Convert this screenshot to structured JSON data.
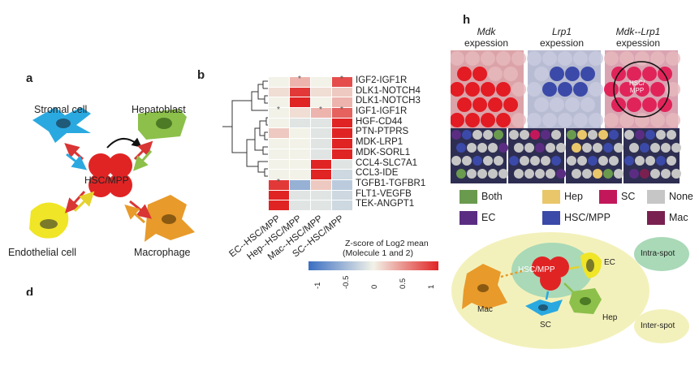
{
  "panels": {
    "a": {
      "label": "a",
      "center": "HSC/MPP",
      "cells": [
        "Stromal cell",
        "Hepatoblast",
        "Endothelial cell",
        "Macrophage"
      ]
    },
    "b": {
      "label": "b",
      "rows": [
        "IGF2-IGF1R",
        "DLK1-NOTCH4",
        "DLK1-NOTCH3",
        "IGF1-IGF1R",
        "HGF-CD44",
        "PTN-PTPRS",
        "MDK-LRP1",
        "MDK-SORL1",
        "CCL4-SLC7A1",
        "CCL3-IDE",
        "TGFB1-TGFBR1",
        "FLT1-VEGFB",
        "TEK-ANGPT1"
      ],
      "columns": [
        "EC--HSC/MPP",
        "Hep--HSC/MPP",
        "Mac--HSC/MPP",
        "SC--HSC/MPP"
      ],
      "z_values": [
        [
          0.0,
          0.3,
          0.0,
          0.8
        ],
        [
          0.1,
          0.9,
          0.1,
          0.2
        ],
        [
          0.0,
          1.0,
          0.0,
          0.3
        ],
        [
          0.0,
          0.1,
          0.3,
          0.7
        ],
        [
          0.0,
          -0.1,
          -0.1,
          2.0
        ],
        [
          0.2,
          0.0,
          -0.1,
          2.0
        ],
        [
          0.0,
          0.0,
          -0.1,
          2.0
        ],
        [
          0.0,
          0.0,
          -0.1,
          2.0
        ],
        [
          0.0,
          0.0,
          2.0,
          -0.1
        ],
        [
          0.0,
          0.0,
          2.0,
          -0.2
        ],
        [
          0.9,
          -0.5,
          0.2,
          -0.3
        ],
        [
          2.0,
          -0.1,
          -0.1,
          -0.2
        ],
        [
          2.0,
          -0.1,
          -0.1,
          -0.2
        ]
      ],
      "stars": [
        [
          0,
          1
        ],
        [
          0,
          3
        ],
        [
          3,
          0
        ],
        [
          3,
          2
        ],
        [
          3,
          3
        ],
        [
          10,
          0
        ]
      ],
      "star_symbol": "*",
      "colorbar": {
        "title_line1": "Z-score of Log2 mean",
        "title_line2": "(Molecule 1 and  2)",
        "ticks": [
          "-1",
          "-0.5",
          "0",
          "0.5",
          "1"
        ],
        "low_color": "#3b6fc2",
        "mid_color": "#f2f2e8",
        "high_color": "#e02424"
      }
    },
    "d": {
      "label": "d"
    },
    "h": {
      "label": "h",
      "headers": [
        {
          "gene": "Mdk",
          "suffix": "expession"
        },
        {
          "gene": "Lrp1",
          "suffix": "expession"
        },
        {
          "gene": "Mdk--Lrp1",
          "suffix": "expession"
        }
      ],
      "spot_label": "HSC/\nMPP",
      "legend": [
        {
          "label": "Both",
          "color": "#6a9a4e"
        },
        {
          "label": "Hep",
          "color": "#e9c66a"
        },
        {
          "label": "SC",
          "color": "#c2185b"
        },
        {
          "label": "None",
          "color": "#c6c6c6"
        },
        {
          "label": "EC",
          "color": "#5a2d82"
        },
        {
          "label": "HSC/MPP",
          "color": "#3b4aa8"
        },
        {
          "label": "Mac",
          "color": "#7a2050"
        }
      ],
      "schematic": {
        "center": "HSC/MPP",
        "cells": [
          "EC",
          "Mac",
          "SC",
          "Hep"
        ],
        "intra": "Intra-spot",
        "inter": "Inter-spot"
      }
    }
  }
}
